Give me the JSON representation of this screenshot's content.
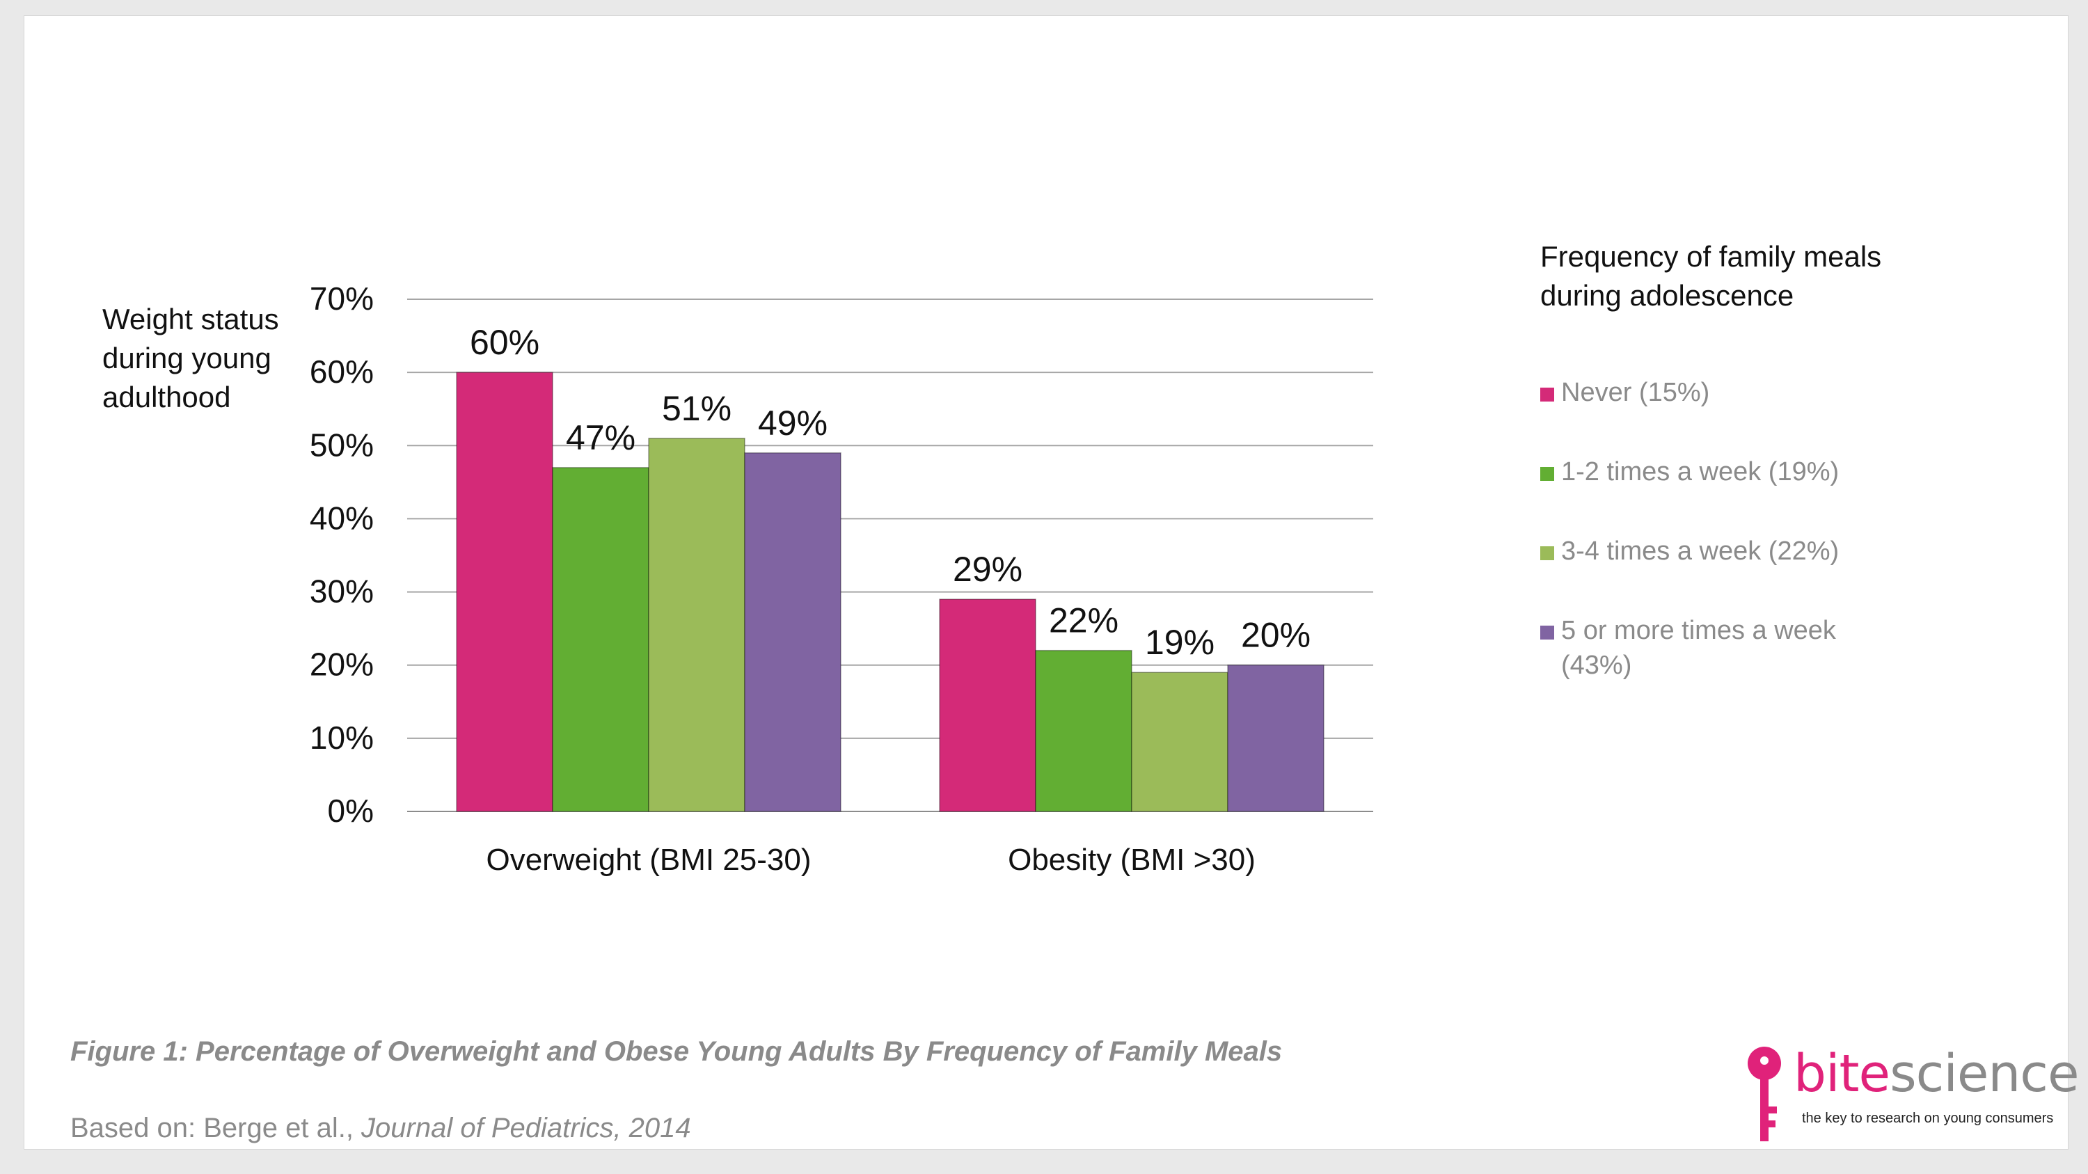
{
  "chart_data": {
    "type": "bar",
    "categories": [
      "Overweight (BMI 25-30)",
      "Obesity (BMI >30)"
    ],
    "series": [
      {
        "name": "Never (15%)",
        "values": [
          60,
          29
        ],
        "color": "#d42a78"
      },
      {
        "name": "1-2 times a week (19%)",
        "values": [
          47,
          22
        ],
        "color": "#62ae33"
      },
      {
        "name": "3-4 times a week (22%)",
        "values": [
          51,
          19
        ],
        "color": "#9bbb59"
      },
      {
        "name": "5 or more times a week (43%)",
        "values": [
          49,
          20
        ],
        "color": "#8064a2"
      }
    ],
    "data_labels": [
      [
        "60%",
        "29%"
      ],
      [
        "47%",
        "22%"
      ],
      [
        "51%",
        "19%"
      ],
      [
        "49%",
        "20%"
      ]
    ],
    "ylim": [
      0,
      70
    ],
    "yticks": [
      "0%",
      "10%",
      "20%",
      "30%",
      "40%",
      "50%",
      "60%",
      "70%"
    ],
    "ylabel": "Weight status during young adulthood",
    "legend_title": "Frequency of family meals during adolescence",
    "legend_position": "right",
    "grid": true
  },
  "caption": "Figure 1: Percentage of Overweight and Obese Young Adults By Frequency of Family Meals",
  "source": {
    "prefix": "Based on: Berge et al., ",
    "journal": "Journal of Pediatrics, 2014"
  },
  "logo": {
    "bite": "bite",
    "science": "science",
    "tagline": "the key to research on young consumers",
    "icon": "key-icon"
  }
}
